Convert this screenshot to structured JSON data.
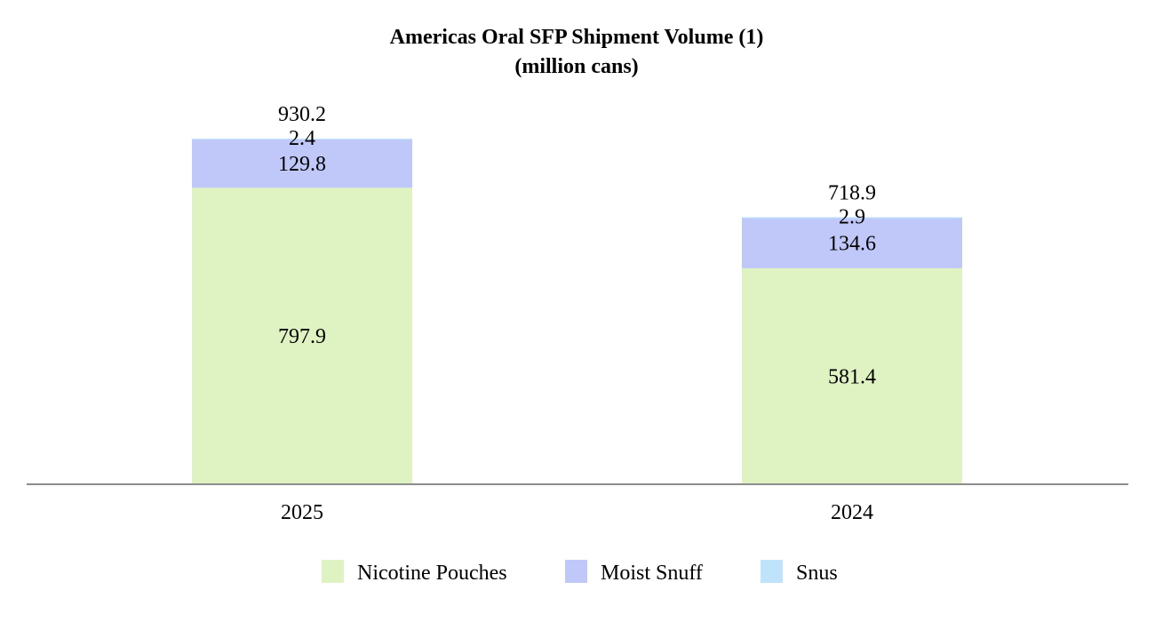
{
  "chart_data": {
    "type": "bar",
    "stacked": true,
    "title": "Americas Oral SFP Shipment Volume (1)",
    "subtitle": "(million cans)",
    "categories": [
      "2025",
      "2024"
    ],
    "series": [
      {
        "name": "Nicotine Pouches",
        "color": "#dff3c2",
        "values": [
          797.9,
          581.4
        ],
        "labels": [
          "797.9",
          "581.4"
        ]
      },
      {
        "name": "Moist Snuff",
        "color": "#bfc8f8",
        "values": [
          129.8,
          134.6
        ],
        "labels": [
          "129.8",
          "134.6"
        ]
      },
      {
        "name": "Snus",
        "color": "#bfe3fb",
        "values": [
          2.4,
          2.9
        ],
        "labels": [
          "2.4",
          "2.9"
        ]
      }
    ],
    "totals": [
      930.2,
      718.9
    ],
    "total_labels": [
      "930.2",
      "718.9"
    ],
    "xlabel": "",
    "ylabel": "",
    "ylim": [
      0,
      930.2
    ],
    "legend_position": "bottom",
    "grid": false,
    "axis_color": "#8c8c8c"
  }
}
